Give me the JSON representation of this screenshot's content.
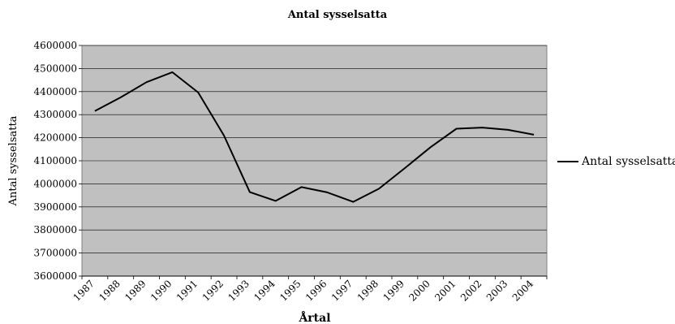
{
  "chart_data": {
    "type": "line",
    "title": "Antal sysselsatta",
    "xlabel": "Årtal",
    "ylabel": "Antal sysselsatta",
    "ylim": [
      3600000,
      4600000
    ],
    "y_ticks": [
      3600000,
      3700000,
      3800000,
      3900000,
      4000000,
      4100000,
      4200000,
      4300000,
      4400000,
      4500000,
      4600000
    ],
    "y_tick_labels": [
      "3600000",
      "3700000",
      "3800000",
      "3900000",
      "4000000",
      "4100000",
      "4200000",
      "4300000",
      "4400000",
      "4500000",
      "4600000"
    ],
    "categories": [
      "1987",
      "1988",
      "1989",
      "1990",
      "1991",
      "1992",
      "1993",
      "1994",
      "1995",
      "1996",
      "1997",
      "1998",
      "1999",
      "2000",
      "2001",
      "2002",
      "2003",
      "2004"
    ],
    "series": [
      {
        "name": "Antal sysselsatta",
        "color": "#000000",
        "values": [
          4316000,
          4375000,
          4441000,
          4484000,
          4396000,
          4209000,
          3964000,
          3926000,
          3986000,
          3963000,
          3922000,
          3979000,
          4068000,
          4159000,
          4239000,
          4244000,
          4234000,
          4213000
        ]
      }
    ],
    "grid": true,
    "legend": "right",
    "plot_background": "#c0c0c0"
  }
}
